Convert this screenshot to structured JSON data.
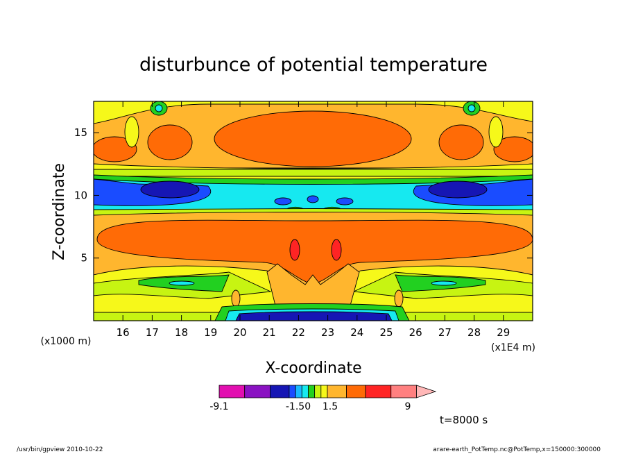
{
  "chart_data": {
    "type": "heatmap",
    "title": "disturbunce of potential temperature",
    "xlabel": "X-coordinate",
    "ylabel": "Z-coordinate",
    "x_unit": "(x1E4 m)",
    "y_unit": "(x1000 m)",
    "xlim": [
      15,
      30
    ],
    "ylim": [
      0,
      17.5
    ],
    "x_ticks": [
      16,
      17,
      18,
      19,
      20,
      21,
      22,
      23,
      24,
      25,
      26,
      27,
      28,
      29
    ],
    "y_ticks": [
      5,
      10,
      15
    ],
    "colorbar": {
      "colors": [
        "#e20fb0",
        "#8a12c2",
        "#1616b4",
        "#1a4cff",
        "#19b9ff",
        "#16e9f0",
        "#22d020",
        "#c7f412",
        "#f6f81a",
        "#ffb62e",
        "#ff6b06",
        "#ff2424",
        "#ff8080",
        "#ffb7b7"
      ],
      "weights": [
        4,
        4,
        3,
        1,
        1,
        1,
        1,
        1,
        1,
        3,
        3,
        4,
        4,
        3
      ],
      "labels": [
        "-9.1",
        "-1.50",
        "1.5",
        "9"
      ]
    },
    "time_label": "t=8000 s",
    "footer_left": "/usr/bin/gpview  2010-10-22",
    "footer_right": "arare-earth_PotTemp.nc@PotTemp,x=150000:300000"
  }
}
